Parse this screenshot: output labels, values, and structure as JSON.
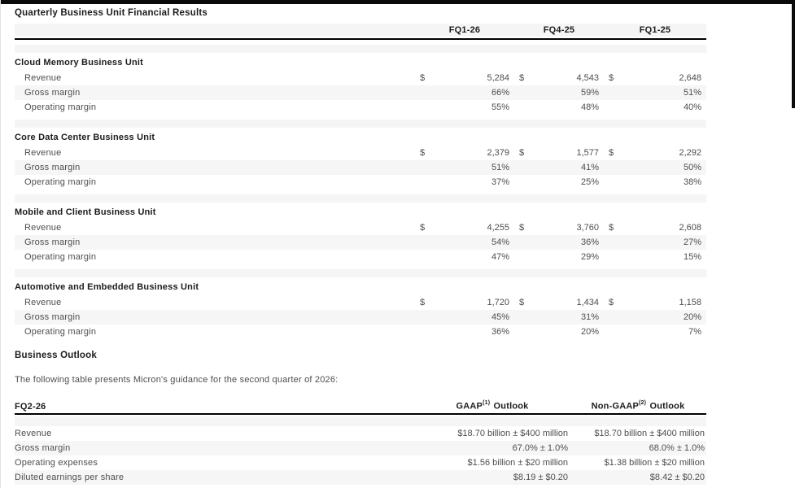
{
  "page": {
    "title": "Quarterly Business Unit Financial Results"
  },
  "colors": {
    "frame": "#0a0a0a",
    "row_band": "#f5f5f5",
    "rule": "#000000",
    "body_text": "#4e4e4e",
    "heading_text": "#1c1c1c"
  },
  "main_table": {
    "currency_symbol": "$",
    "columns": [
      "FQ1-26",
      "FQ4-25",
      "FQ1-25"
    ],
    "sections": [
      {
        "title": "Cloud Memory Business Unit",
        "rows": [
          {
            "label": "Revenue",
            "currency": true,
            "values": [
              "5,284",
              "4,543",
              "2,648"
            ]
          },
          {
            "label": "Gross margin",
            "currency": false,
            "values": [
              "66%",
              "59%",
              "51%"
            ]
          },
          {
            "label": "Operating margin",
            "currency": false,
            "values": [
              "55%",
              "48%",
              "40%"
            ]
          }
        ]
      },
      {
        "title": "Core Data Center Business Unit",
        "rows": [
          {
            "label": "Revenue",
            "currency": true,
            "values": [
              "2,379",
              "1,577",
              "2,292"
            ]
          },
          {
            "label": "Gross margin",
            "currency": false,
            "values": [
              "51%",
              "41%",
              "50%"
            ]
          },
          {
            "label": "Operating margin",
            "currency": false,
            "values": [
              "37%",
              "25%",
              "38%"
            ]
          }
        ]
      },
      {
        "title": "Mobile and Client Business Unit",
        "rows": [
          {
            "label": "Revenue",
            "currency": true,
            "values": [
              "4,255",
              "3,760",
              "2,608"
            ]
          },
          {
            "label": "Gross margin",
            "currency": false,
            "values": [
              "54%",
              "36%",
              "27%"
            ]
          },
          {
            "label": "Operating margin",
            "currency": false,
            "values": [
              "47%",
              "29%",
              "15%"
            ]
          }
        ]
      },
      {
        "title": "Automotive and Embedded Business Unit",
        "rows": [
          {
            "label": "Revenue",
            "currency": true,
            "values": [
              "1,720",
              "1,434",
              "1,158"
            ]
          },
          {
            "label": "Gross margin",
            "currency": false,
            "values": [
              "45%",
              "31%",
              "20%"
            ]
          },
          {
            "label": "Operating margin",
            "currency": false,
            "values": [
              "36%",
              "20%",
              "7%"
            ]
          }
        ]
      }
    ]
  },
  "outlook": {
    "heading": "Business Outlook",
    "intro": "The following table presents Micron's guidance for the second quarter of 2026:",
    "table": {
      "period": "FQ2-26",
      "col1": {
        "prefix": "GAAP",
        "footnote": "(1)",
        "suffix": "Outlook"
      },
      "col2": {
        "prefix": "Non-GAAP",
        "footnote": "(2)",
        "suffix": "Outlook"
      },
      "rows": [
        {
          "label": "Revenue",
          "gaap": "$18.70 billion ± $400 million",
          "non_gaap": "$18.70 billion ± $400 million"
        },
        {
          "label": "Gross margin",
          "gaap": "67.0% ± 1.0%",
          "non_gaap": "68.0% ± 1.0%"
        },
        {
          "label": "Operating expenses",
          "gaap": "$1.56 billion ± $20 million",
          "non_gaap": "$1.38 billion ± $20 million"
        },
        {
          "label": "Diluted earnings per share",
          "gaap": "$8.19 ± $0.20",
          "non_gaap": "$8.42 ± $0.20"
        }
      ]
    }
  }
}
